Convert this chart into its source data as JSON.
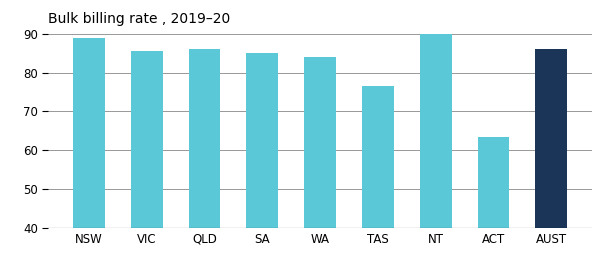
{
  "categories": [
    "NSW",
    "VIC",
    "QLD",
    "SA",
    "WA",
    "TAS",
    "NT",
    "ACT",
    "AUST"
  ],
  "values": [
    89.0,
    85.5,
    86.0,
    85.0,
    84.0,
    76.5,
    90.0,
    63.5,
    86.0
  ],
  "bar_colors": [
    "#5BC8D8",
    "#5BC8D8",
    "#5BC8D8",
    "#5BC8D8",
    "#5BC8D8",
    "#5BC8D8",
    "#5BC8D8",
    "#5BC8D8",
    "#1A3558"
  ],
  "title": "Bulk billing rate , 2019–20",
  "ylim": [
    40,
    90
  ],
  "yticks": [
    40,
    50,
    60,
    70,
    80,
    90
  ],
  "title_fontsize": 10,
  "tick_fontsize": 8.5,
  "background_color": "#ffffff",
  "grid_color": "#888888",
  "bar_width": 0.55
}
